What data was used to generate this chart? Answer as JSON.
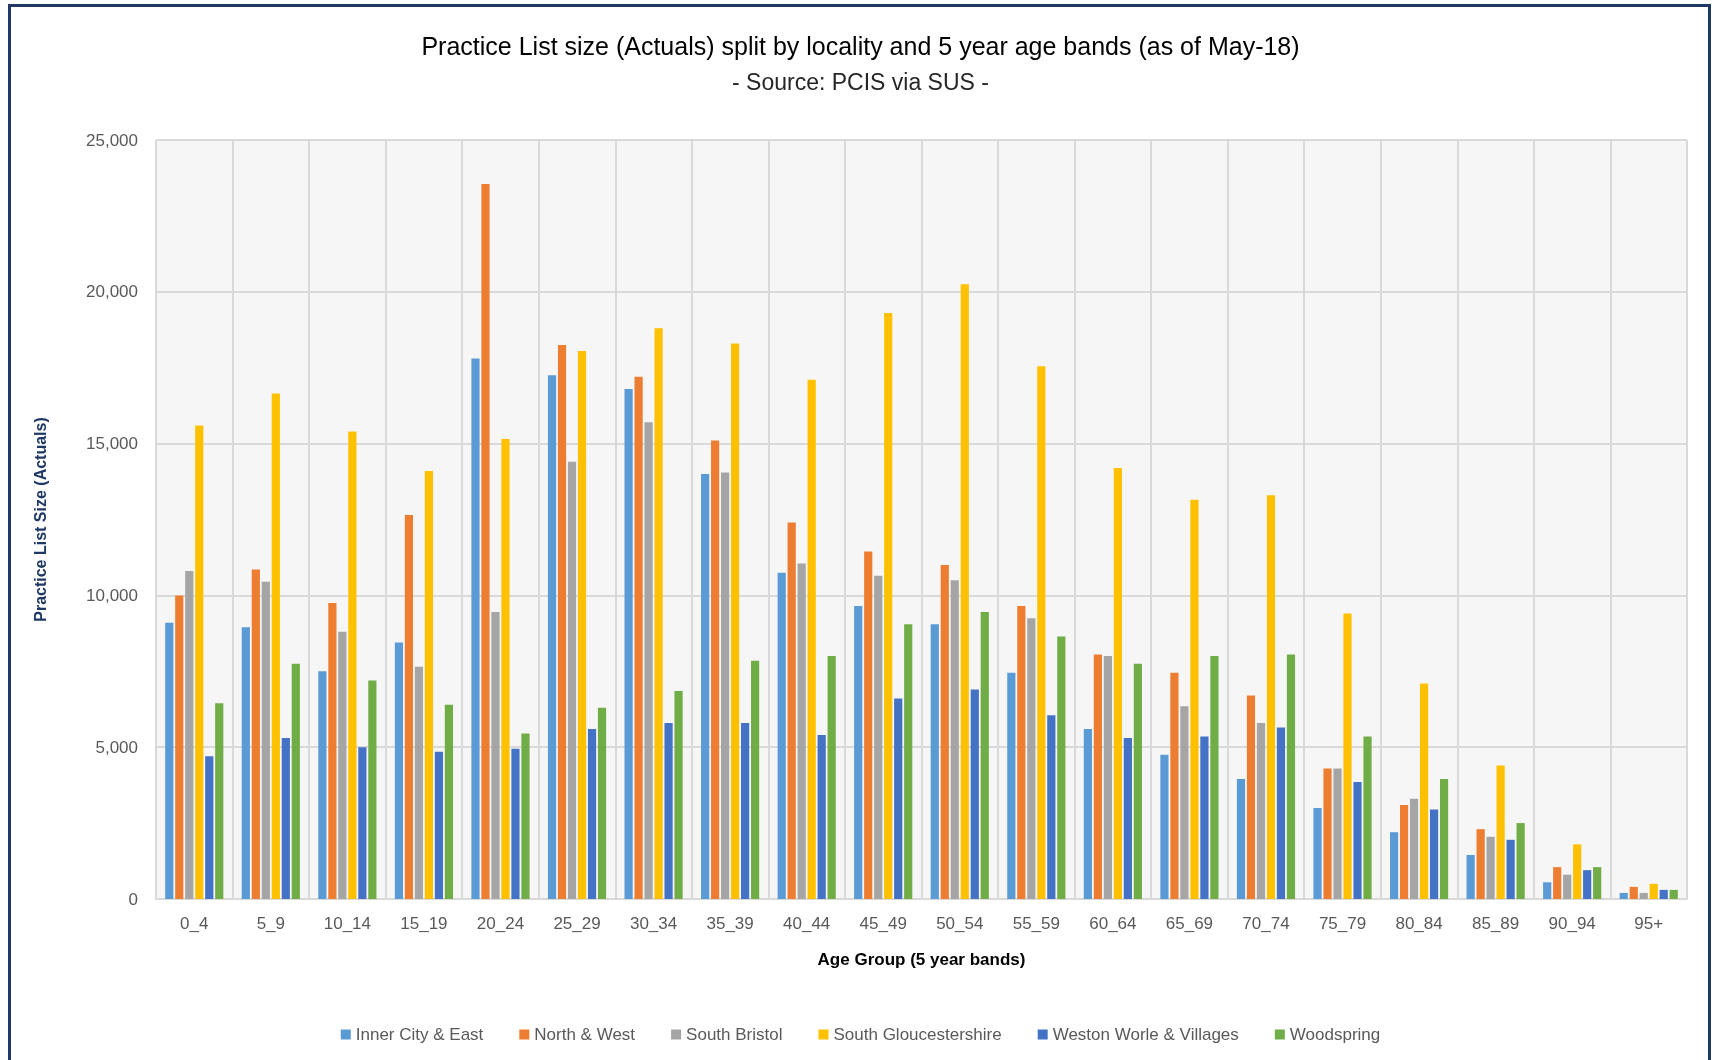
{
  "chart_data": {
    "type": "bar",
    "title": "Practice List size (Actuals) split by locality and 5 year age bands (as of May-18)",
    "subtitle": "- Source: PCIS via SUS -",
    "xlabel": "Age Group (5 year bands)",
    "ylabel": "Practice List Size (Actuals)",
    "categories": [
      "0_4",
      "5_9",
      "10_14",
      "15_19",
      "20_24",
      "25_29",
      "30_34",
      "35_39",
      "40_44",
      "45_49",
      "50_54",
      "55_59",
      "60_64",
      "65_69",
      "70_74",
      "75_79",
      "80_84",
      "85_89",
      "90_94",
      "95+"
    ],
    "series": [
      {
        "name": "Inner City & East",
        "color": "#5b9bd5",
        "values": [
          9100,
          8950,
          7500,
          8450,
          17800,
          17250,
          16800,
          14000,
          10750,
          9650,
          9050,
          7450,
          5600,
          4750,
          3950,
          3000,
          2200,
          1450,
          550,
          200
        ]
      },
      {
        "name": "North & West",
        "color": "#ed7d31",
        "values": [
          10000,
          10850,
          9750,
          12650,
          23550,
          18250,
          17200,
          15100,
          12400,
          11450,
          11000,
          9650,
          8050,
          7450,
          6700,
          4300,
          3100,
          2300,
          1050,
          400
        ]
      },
      {
        "name": "South Bristol",
        "color": "#a5a5a5",
        "values": [
          10800,
          10450,
          8800,
          7650,
          9450,
          14400,
          15700,
          14050,
          11050,
          10650,
          10500,
          9250,
          8000,
          6350,
          5800,
          4300,
          3300,
          2050,
          800,
          200
        ]
      },
      {
        "name": "South Gloucestershire",
        "color": "#ffc000",
        "values": [
          15600,
          16650,
          15400,
          14100,
          15150,
          18050,
          18800,
          18300,
          17100,
          19300,
          20250,
          17550,
          14200,
          13150,
          13300,
          9400,
          7100,
          4400,
          1800,
          500
        ]
      },
      {
        "name": "Weston Worle & Villages",
        "color": "#4472c4",
        "values": [
          4700,
          5300,
          5000,
          4850,
          4950,
          5600,
          5800,
          5800,
          5400,
          6600,
          6900,
          6050,
          5300,
          5350,
          5650,
          3850,
          2950,
          1950,
          950,
          300
        ]
      },
      {
        "name": "Woodspring",
        "color": "#70ad47",
        "values": [
          6450,
          7750,
          7200,
          6400,
          5450,
          6300,
          6850,
          7850,
          8000,
          9050,
          9450,
          8650,
          7750,
          8000,
          8050,
          5350,
          3950,
          2500,
          1050,
          300
        ]
      }
    ],
    "ylim": [
      0,
      25000
    ],
    "yticks": [
      {
        "value": 0,
        "label": "0"
      },
      {
        "value": 5000,
        "label": "5,000"
      },
      {
        "value": 10000,
        "label": "10,000"
      },
      {
        "value": 15000,
        "label": "15,000"
      },
      {
        "value": 20000,
        "label": "20,000"
      },
      {
        "value": 25000,
        "label": "25,000"
      }
    ],
    "grid": true,
    "legend": "bottom"
  }
}
